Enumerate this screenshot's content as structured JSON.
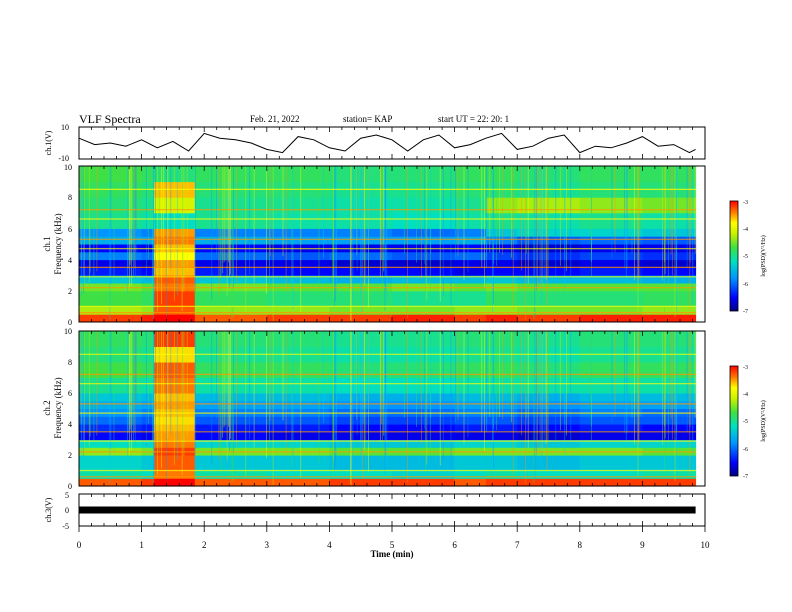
{
  "header": {
    "title": "VLF Spectra",
    "date": "Feb. 21, 2022",
    "station": "station= KAP",
    "start_ut": "start  UT =   22: 20: 1"
  },
  "colorbar_label": "log(PSD)(V²/Hz)",
  "colors": {
    "trace": "#000000",
    "colormap": [
      "#000080",
      "#0000ff",
      "#0078ff",
      "#00c8ff",
      "#00e0a0",
      "#40e040",
      "#a0f000",
      "#ffff00",
      "#ff9600",
      "#ff0000",
      "#c00000"
    ]
  },
  "chart_data": [
    {
      "type": "line",
      "name": "ch1-waveform",
      "ylabel": "ch.1(V)",
      "x_unit_label": "Time  (min)",
      "xlim": [
        0,
        10
      ],
      "ylim": [
        -10,
        10
      ],
      "yticks": [
        "10",
        "-10"
      ],
      "x": [
        0,
        0.25,
        0.5,
        0.75,
        1.0,
        1.25,
        1.5,
        1.75,
        2.0,
        2.25,
        2.5,
        2.75,
        3.0,
        3.25,
        3.5,
        3.75,
        4.0,
        4.25,
        4.5,
        4.75,
        5.0,
        5.25,
        5.5,
        5.75,
        6.0,
        6.25,
        6.5,
        6.75,
        7.0,
        7.25,
        7.5,
        7.75,
        8.0,
        8.25,
        8.5,
        8.75,
        9.0,
        9.25,
        9.5,
        9.75,
        9.85
      ],
      "y": [
        3,
        -1,
        0,
        -2,
        2,
        -3,
        1,
        -5,
        6,
        3,
        2,
        0,
        -4,
        -6,
        4,
        2,
        -3,
        -5,
        3,
        5,
        2,
        -5,
        2,
        5,
        -3,
        -1,
        3,
        6,
        -4,
        -2,
        3,
        5,
        -6,
        -2,
        -3,
        0,
        4,
        -2,
        -1,
        -6,
        -4
      ]
    },
    {
      "type": "heatmap",
      "name": "ch1-spectrogram",
      "ylabel": "ch.1\nFrequency  (kHz)",
      "xlim": [
        0,
        10
      ],
      "ylim": [
        0,
        10
      ],
      "yticks": [
        "0",
        "2",
        "4",
        "6",
        "8",
        "10"
      ],
      "colorbar": {
        "label": "log(PSD)(V²/Hz)",
        "range": [
          -7,
          -3
        ],
        "ticks": [
          "-3",
          "-4",
          "-5",
          "-6",
          "-7"
        ]
      },
      "time_bins_min": [
        0,
        1,
        1.2,
        1.85,
        3,
        4,
        5,
        6,
        6.5,
        7,
        8,
        9,
        9.85
      ],
      "freq_bins_khz": [
        0,
        0.5,
        1,
        2,
        2.5,
        3,
        3.5,
        4,
        4.5,
        5,
        5.5,
        6,
        7,
        8,
        9,
        10
      ],
      "log_psd": [
        [
          -3.2,
          -3.1,
          -3.0,
          -3.3,
          -3.2,
          -3.2,
          -3.1,
          -3.2,
          -3.1,
          -3.2,
          -3.1,
          -3.1,
          -3.2
        ],
        [
          -4.3,
          -4.4,
          -3.3,
          -4.4,
          -4.4,
          -4.5,
          -4.5,
          -4.4,
          -4.4,
          -4.5,
          -4.5,
          -4.4,
          -4.4
        ],
        [
          -4.7,
          -4.8,
          -3.2,
          -4.8,
          -4.9,
          -4.9,
          -5.0,
          -5.0,
          -4.8,
          -4.9,
          -4.9,
          -4.8,
          -4.8
        ],
        [
          -4.5,
          -4.6,
          -3.4,
          -4.5,
          -4.6,
          -4.6,
          -4.5,
          -4.6,
          -4.5,
          -4.6,
          -4.6,
          -4.6,
          -4.5
        ],
        [
          -5.4,
          -5.5,
          -3.3,
          -5.4,
          -5.5,
          -5.6,
          -5.5,
          -5.5,
          -5.4,
          -5.5,
          -5.5,
          -5.6,
          -5.5
        ],
        [
          -6.4,
          -6.5,
          -3.6,
          -6.4,
          -6.5,
          -6.5,
          -6.5,
          -6.6,
          -6.5,
          -6.5,
          -6.4,
          -6.5,
          -6.4
        ],
        [
          -6.6,
          -6.7,
          -3.5,
          -6.6,
          -6.6,
          -6.7,
          -6.7,
          -6.6,
          -6.6,
          -6.7,
          -6.6,
          -6.7,
          -6.6
        ],
        [
          -5.9,
          -6.0,
          -3.8,
          -6.0,
          -6.1,
          -6.0,
          -6.1,
          -6.0,
          -6.2,
          -6.3,
          -6.2,
          -6.3,
          -6.2
        ],
        [
          -6.5,
          -6.6,
          -3.6,
          -6.5,
          -6.6,
          -6.6,
          -6.6,
          -6.5,
          -6.6,
          -6.7,
          -6.6,
          -6.6,
          -6.5
        ],
        [
          -5.6,
          -5.7,
          -3.4,
          -5.6,
          -5.7,
          -5.7,
          -5.7,
          -5.6,
          -5.9,
          -6.1,
          -6.0,
          -6.1,
          -6.0
        ],
        [
          -5.8,
          -5.9,
          -3.5,
          -5.9,
          -5.9,
          -5.9,
          -6.0,
          -5.9,
          -5.4,
          -5.3,
          -5.3,
          -5.4,
          -5.3
        ],
        [
          -5.0,
          -5.1,
          -5.2,
          -5.0,
          -5.1,
          -5.1,
          -5.2,
          -5.1,
          -5.0,
          -5.1,
          -5.0,
          -5.1,
          -5.0
        ],
        [
          -4.9,
          -5.0,
          -4.1,
          -5.0,
          -5.0,
          -5.1,
          -5.1,
          -5.0,
          -4.4,
          -4.3,
          -4.4,
          -4.5,
          -4.5
        ],
        [
          -4.8,
          -4.9,
          -3.6,
          -4.9,
          -4.9,
          -5.0,
          -5.0,
          -4.9,
          -4.9,
          -5.0,
          -4.9,
          -4.9,
          -4.9
        ],
        [
          -4.7,
          -4.8,
          -4.9,
          -4.8,
          -4.8,
          -4.9,
          -4.9,
          -4.8,
          -4.8,
          -4.9,
          -4.8,
          -4.8,
          -4.8
        ]
      ]
    },
    {
      "type": "heatmap",
      "name": "ch2-spectrogram",
      "ylabel": "ch.2\nFrequency  (kHz)",
      "xlim": [
        0,
        10
      ],
      "ylim": [
        0,
        10
      ],
      "yticks": [
        "0",
        "2",
        "4",
        "6",
        "8",
        "10"
      ],
      "colorbar": {
        "label": "log(PSD)(V²/Hz)",
        "range": [
          -7,
          -3
        ],
        "ticks": [
          "-3",
          "-4",
          "-5",
          "-6",
          "-7"
        ]
      },
      "time_bins_min": [
        0,
        1,
        1.2,
        1.85,
        3,
        4,
        5,
        6,
        6.5,
        7,
        8,
        9,
        9.85
      ],
      "freq_bins_khz": [
        0,
        0.5,
        1,
        2,
        2.5,
        3,
        3.5,
        4,
        4.5,
        5,
        5.5,
        6,
        7,
        8,
        9,
        10
      ],
      "log_psd": [
        [
          -3.3,
          -3.2,
          -3.0,
          -3.3,
          -3.3,
          -3.2,
          -3.2,
          -3.3,
          -3.2,
          -3.2,
          -3.2,
          -3.2,
          -3.3
        ],
        [
          -5.1,
          -5.2,
          -3.4,
          -5.1,
          -5.2,
          -5.2,
          -5.3,
          -5.2,
          -5.1,
          -5.2,
          -5.2,
          -5.1,
          -5.1
        ],
        [
          -5.3,
          -5.4,
          -3.3,
          -5.4,
          -5.4,
          -5.5,
          -5.5,
          -5.4,
          -5.4,
          -5.5,
          -5.4,
          -5.4,
          -5.4
        ],
        [
          -4.4,
          -4.5,
          -3.2,
          -4.5,
          -4.5,
          -4.6,
          -4.6,
          -4.5,
          -4.5,
          -4.5,
          -4.5,
          -4.6,
          -4.5
        ],
        [
          -5.2,
          -5.3,
          -3.4,
          -5.3,
          -5.3,
          -5.4,
          -5.4,
          -5.3,
          -5.3,
          -5.4,
          -5.3,
          -5.3,
          -5.3
        ],
        [
          -6.5,
          -6.6,
          -3.5,
          -6.5,
          -6.6,
          -6.6,
          -6.6,
          -6.6,
          -6.6,
          -6.7,
          -6.6,
          -6.6,
          -6.5
        ],
        [
          -6.3,
          -6.4,
          -3.6,
          -6.4,
          -6.4,
          -6.5,
          -6.5,
          -6.4,
          -6.4,
          -6.5,
          -6.4,
          -6.5,
          -6.4
        ],
        [
          -6.0,
          -6.1,
          -3.7,
          -6.1,
          -6.1,
          -6.2,
          -6.2,
          -6.1,
          -6.1,
          -6.2,
          -6.1,
          -6.1,
          -6.1
        ],
        [
          -5.8,
          -5.9,
          -3.6,
          -5.9,
          -5.9,
          -6.0,
          -6.0,
          -5.9,
          -5.9,
          -6.0,
          -5.9,
          -6.0,
          -5.9
        ],
        [
          -5.6,
          -5.7,
          -3.5,
          -5.7,
          -5.7,
          -5.8,
          -5.8,
          -5.7,
          -5.7,
          -5.8,
          -5.7,
          -5.7,
          -5.7
        ],
        [
          -5.4,
          -5.5,
          -3.6,
          -5.5,
          -5.5,
          -5.6,
          -5.6,
          -5.5,
          -5.5,
          -5.6,
          -5.5,
          -5.5,
          -5.5
        ],
        [
          -5.0,
          -5.1,
          -3.4,
          -5.1,
          -5.1,
          -5.2,
          -5.2,
          -5.1,
          -5.1,
          -5.1,
          -5.1,
          -5.1,
          -5.1
        ],
        [
          -4.7,
          -4.8,
          -3.3,
          -4.8,
          -4.8,
          -4.9,
          -4.9,
          -4.8,
          -4.8,
          -4.9,
          -4.8,
          -4.8,
          -4.8
        ],
        [
          -4.9,
          -5.0,
          -3.7,
          -5.0,
          -5.0,
          -5.1,
          -5.1,
          -5.0,
          -5.0,
          -5.1,
          -5.0,
          -5.0,
          -5.0
        ],
        [
          -4.8,
          -4.9,
          -3.2,
          -4.9,
          -4.9,
          -5.0,
          -5.0,
          -4.9,
          -4.9,
          -5.0,
          -4.9,
          -4.9,
          -4.9
        ]
      ]
    },
    {
      "type": "line",
      "name": "ch3-waveform",
      "ylabel": "ch.3(V)",
      "xlabel": "Time  (min)",
      "xlim": [
        0,
        10
      ],
      "ylim": [
        -5,
        5
      ],
      "yticks": [
        "5",
        "0",
        "-5"
      ],
      "xticks": [
        "0",
        "1",
        "2",
        "3",
        "4",
        "5",
        "6",
        "7",
        "8",
        "9",
        "10"
      ],
      "x": [
        0,
        9.85
      ],
      "y": [
        0,
        0
      ]
    }
  ]
}
